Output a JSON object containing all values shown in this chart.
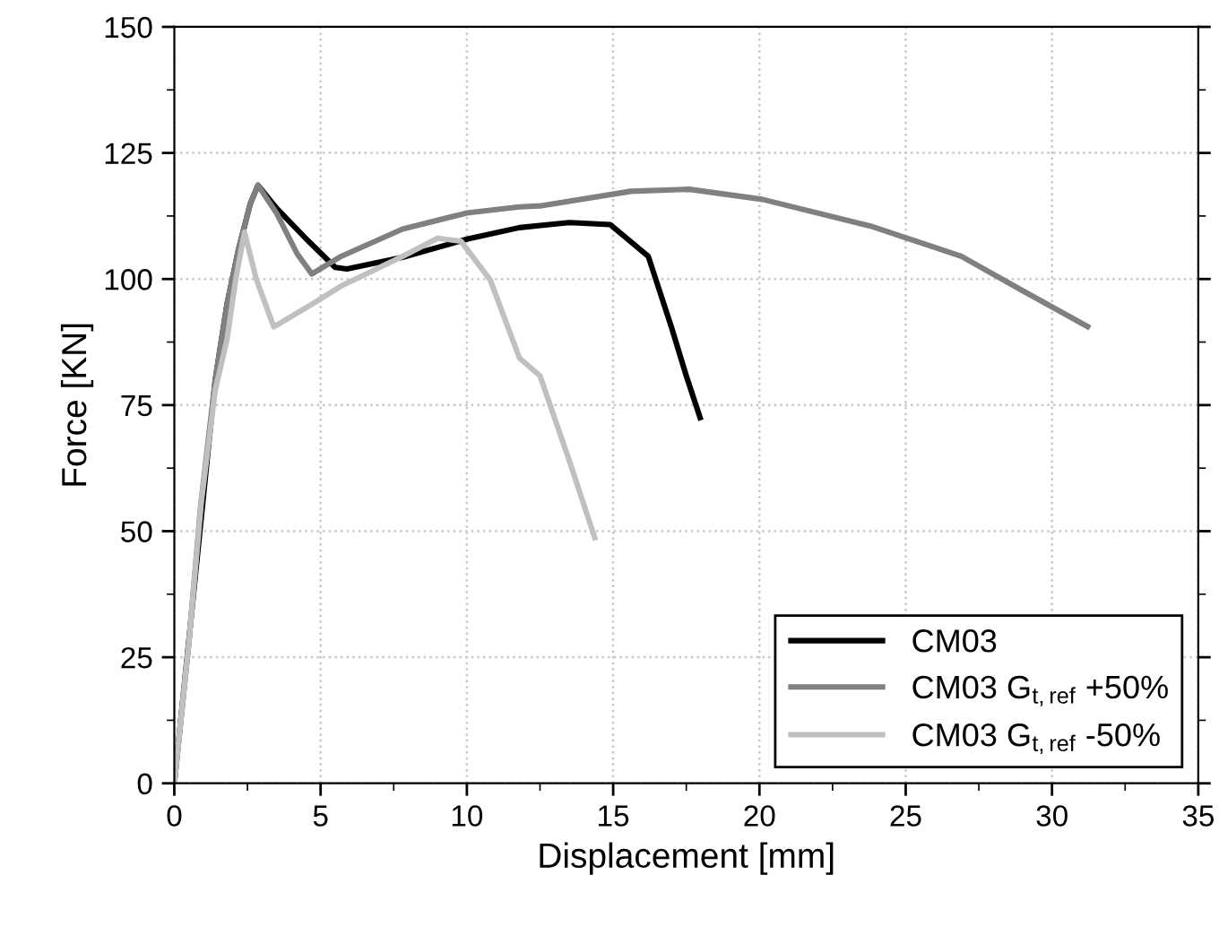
{
  "chart_data": {
    "type": "line",
    "xlabel": "Displacement [mm]",
    "ylabel": "Force [KN]",
    "xlim": [
      0,
      35
    ],
    "xticks": [
      0,
      5,
      10,
      15,
      20,
      25,
      30,
      35
    ],
    "ylim": [
      0,
      150
    ],
    "yticks": [
      0,
      25,
      50,
      75,
      100,
      125,
      150
    ],
    "grid": true,
    "legend": "bottom right",
    "marker": "none",
    "line_style": "solid",
    "series": [
      {
        "name": "CM03",
        "color": "#000000",
        "x": [
          0,
          1.4,
          1.8,
          2.2,
          2.6,
          2.86,
          3.5,
          4.5,
          5.5,
          5.9,
          7.8,
          10,
          11.8,
          13.5,
          14.9,
          16.2,
          17.0,
          17.5,
          18.0
        ],
        "values": [
          0,
          80,
          95,
          106,
          115,
          118.6,
          114,
          108,
          102.3,
          102,
          104.3,
          107.9,
          110.2,
          111.2,
          110.8,
          104.5,
          90.3,
          80.8,
          72.0
        ]
      },
      {
        "name": "CM03 G$_{t,ref}$ +50%",
        "color": "#808080",
        "x": [
          0,
          0.5,
          0.9,
          1.4,
          1.8,
          2.2,
          2.6,
          2.86,
          3.5,
          4.2,
          4.7,
          5.7,
          7.8,
          10,
          11.8,
          12.5,
          15.6,
          17.6,
          20.1,
          23.8,
          26.9,
          28.9,
          31.3
        ],
        "values": [
          0,
          28,
          55,
          80,
          95,
          106,
          115,
          118.6,
          113,
          105,
          101,
          104.5,
          109.9,
          113.1,
          114.3,
          114.5,
          117.4,
          117.8,
          115.8,
          110.5,
          104.5,
          98,
          90.3
        ]
      },
      {
        "name": "CM03 G$_{t,ref}$ -50%",
        "color": "#c0c0c0",
        "x": [
          0,
          0.5,
          0.92,
          1.4,
          1.8,
          2.1,
          2.4,
          2.8,
          3.4,
          4.7,
          5.7,
          7.8,
          9,
          9.8,
          10.8,
          11.8,
          12.5,
          13.5,
          14.4
        ],
        "values": [
          0,
          28,
          55.7,
          78,
          88,
          100,
          109.3,
          100,
          90.5,
          95,
          98.6,
          104.5,
          108.1,
          107.5,
          99.8,
          84.3,
          80.8,
          64,
          48.2
        ]
      }
    ]
  }
}
